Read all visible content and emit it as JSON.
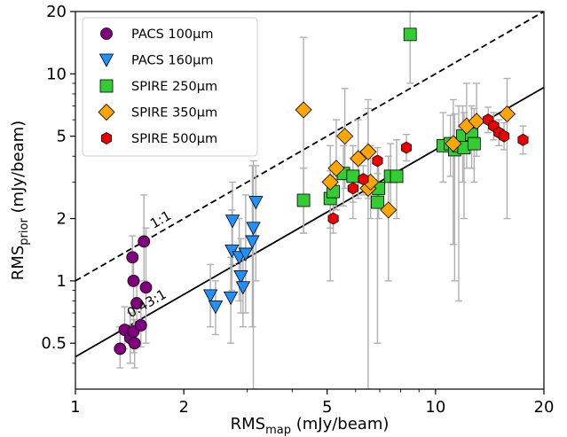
{
  "chart_data": {
    "type": "scatter",
    "xlabel": {
      "base": "RMS",
      "sub": "map",
      "rest": " (mJy/beam)"
    },
    "ylabel": {
      "base": "RMS",
      "sub": "prior",
      "rest": " (mJy/beam)"
    },
    "xscale": "log",
    "yscale": "log",
    "xlim": [
      1,
      20
    ],
    "ylim": [
      0.3,
      20
    ],
    "xticks": [
      1,
      2,
      5,
      10,
      20
    ],
    "xtick_labels": [
      "1",
      "2",
      "5",
      "10",
      "20"
    ],
    "yticks": [
      0.5,
      1,
      2,
      5,
      10,
      20
    ],
    "ytick_labels": [
      "0.5",
      "1",
      "2",
      "5",
      "10",
      "20"
    ],
    "grid": false,
    "legend_position": "top-left",
    "lines": [
      {
        "name": "1:1",
        "label": "1:1",
        "slope": 1.0,
        "style": "dashed",
        "label_x": 1.75
      },
      {
        "name": "0.43:1",
        "label": "0.43:1",
        "slope": 0.43,
        "style": "solid",
        "label_x": 1.6
      }
    ],
    "series": [
      {
        "name": "PACS 100µm",
        "marker": "circle",
        "color": "#800080",
        "points": [
          {
            "x": 1.33,
            "y": 0.47,
            "ylo": 0.38,
            "yhi": 0.6
          },
          {
            "x": 1.37,
            "y": 0.58,
            "ylo": 0.47,
            "yhi": 0.75
          },
          {
            "x": 1.42,
            "y": 0.53,
            "ylo": 0.4,
            "yhi": 0.7
          },
          {
            "x": 1.44,
            "y": 1.3,
            "ylo": 1.0,
            "yhi": 1.65
          },
          {
            "x": 1.45,
            "y": 1.0,
            "ylo": 0.78,
            "yhi": 1.3
          },
          {
            "x": 1.45,
            "y": 0.57,
            "ylo": 0.45,
            "yhi": 0.74
          },
          {
            "x": 1.46,
            "y": 0.5,
            "ylo": 0.38,
            "yhi": 0.65
          },
          {
            "x": 1.48,
            "y": 0.78,
            "ylo": 0.6,
            "yhi": 1.0
          },
          {
            "x": 1.52,
            "y": 0.61,
            "ylo": 0.48,
            "yhi": 0.78
          },
          {
            "x": 1.55,
            "y": 1.55,
            "ylo": 1.0,
            "yhi": 2.6
          },
          {
            "x": 1.57,
            "y": 0.93,
            "ylo": 0.5,
            "yhi": 1.8
          }
        ]
      },
      {
        "name": "PACS 160µm",
        "marker": "triangle-down",
        "color": "#1e90ff",
        "points": [
          {
            "x": 2.37,
            "y": 0.85,
            "ylo": 0.6,
            "yhi": 1.2
          },
          {
            "x": 2.45,
            "y": 0.75,
            "ylo": 0.55,
            "yhi": 1.0
          },
          {
            "x": 2.7,
            "y": 0.83,
            "ylo": 0.5,
            "yhi": 1.3
          },
          {
            "x": 2.72,
            "y": 1.4,
            "ylo": 0.9,
            "yhi": 2.2
          },
          {
            "x": 2.73,
            "y": 1.95,
            "ylo": 1.2,
            "yhi": 3.0
          },
          {
            "x": 2.85,
            "y": 1.3,
            "ylo": 0.8,
            "yhi": 2.0
          },
          {
            "x": 2.88,
            "y": 1.05,
            "ylo": 0.7,
            "yhi": 1.6
          },
          {
            "x": 2.92,
            "y": 0.93,
            "ylo": 0.6,
            "yhi": 1.4
          },
          {
            "x": 2.97,
            "y": 1.35,
            "ylo": 0.7,
            "yhi": 2.6
          },
          {
            "x": 3.1,
            "y": 1.55,
            "ylo": 0.6,
            "yhi": 3.6
          },
          {
            "x": 3.12,
            "y": 1.8,
            "ylo": 0.3,
            "yhi": 3.8
          },
          {
            "x": 3.17,
            "y": 2.4,
            "ylo": 1.0,
            "yhi": 3.6
          }
        ]
      },
      {
        "name": "SPIRE 250µm",
        "marker": "square",
        "color": "#32cd32",
        "points": [
          {
            "x": 4.3,
            "y": 2.45,
            "ylo": 1.7,
            "yhi": 3.5
          },
          {
            "x": 5.1,
            "y": 2.5,
            "ylo": 1.8,
            "yhi": 3.4
          },
          {
            "x": 5.2,
            "y": 2.7,
            "ylo": 2.0,
            "yhi": 3.6
          },
          {
            "x": 5.55,
            "y": 3.3,
            "ylo": 2.3,
            "yhi": 4.5
          },
          {
            "x": 5.9,
            "y": 3.2,
            "ylo": 2.0,
            "yhi": 4.5
          },
          {
            "x": 6.9,
            "y": 2.4,
            "ylo": 0.5,
            "yhi": 4.0
          },
          {
            "x": 6.95,
            "y": 2.8,
            "ylo": 2.0,
            "yhi": 3.8
          },
          {
            "x": 7.5,
            "y": 3.2,
            "ylo": 2.2,
            "yhi": 4.6
          },
          {
            "x": 7.8,
            "y": 3.2,
            "ylo": 2.0,
            "yhi": 4.8
          },
          {
            "x": 8.5,
            "y": 15.5,
            "ylo": 9.0,
            "yhi": 20.0
          },
          {
            "x": 10.5,
            "y": 4.5,
            "ylo": 3.0,
            "yhi": 6.5
          },
          {
            "x": 11.0,
            "y": 4.6,
            "ylo": 3.2,
            "yhi": 6.3
          },
          {
            "x": 11.3,
            "y": 4.3,
            "ylo": 1.0,
            "yhi": 6.4
          },
          {
            "x": 11.6,
            "y": 4.5,
            "ylo": 0.8,
            "yhi": 7.0
          },
          {
            "x": 11.9,
            "y": 5.0,
            "ylo": 3.0,
            "yhi": 7.0
          },
          {
            "x": 12.0,
            "y": 4.4,
            "ylo": 2.0,
            "yhi": 6.5
          },
          {
            "x": 12.6,
            "y": 5.1,
            "ylo": 3.5,
            "yhi": 7.0
          },
          {
            "x": 12.8,
            "y": 4.6,
            "ylo": 3.0,
            "yhi": 6.8
          }
        ]
      },
      {
        "name": "SPIRE 350µm",
        "marker": "diamond",
        "color": "#ffa500",
        "points": [
          {
            "x": 4.3,
            "y": 6.7,
            "ylo": 1.7,
            "yhi": 15.0
          },
          {
            "x": 5.1,
            "y": 3.0,
            "ylo": 1.0,
            "yhi": 4.5
          },
          {
            "x": 5.3,
            "y": 3.5,
            "ylo": 2.2,
            "yhi": 6.0
          },
          {
            "x": 5.6,
            "y": 5.0,
            "ylo": 2.8,
            "yhi": 8.5
          },
          {
            "x": 6.1,
            "y": 3.9,
            "ylo": 2.5,
            "yhi": 6.0
          },
          {
            "x": 6.5,
            "y": 4.2,
            "ylo": 2.5,
            "yhi": 6.8
          },
          {
            "x": 6.5,
            "y": 2.8,
            "ylo": 0.3,
            "yhi": 7.5
          },
          {
            "x": 6.6,
            "y": 3.0,
            "ylo": 2.0,
            "yhi": 4.5
          },
          {
            "x": 7.4,
            "y": 2.2,
            "ylo": 1.0,
            "yhi": 4.0
          },
          {
            "x": 11.2,
            "y": 4.6,
            "ylo": 1.5,
            "yhi": 7.5
          },
          {
            "x": 12.2,
            "y": 5.6,
            "ylo": 3.5,
            "yhi": 9.0
          },
          {
            "x": 13.0,
            "y": 5.9,
            "ylo": 4.0,
            "yhi": 9.0
          },
          {
            "x": 15.8,
            "y": 6.4,
            "ylo": 2.0,
            "yhi": 9.5
          }
        ]
      },
      {
        "name": "SPIRE 500µm",
        "marker": "hexagon",
        "color": "#ee0000",
        "points": [
          {
            "x": 5.2,
            "y": 2.0,
            "ylo": 1.7,
            "yhi": 2.35
          },
          {
            "x": 5.9,
            "y": 2.8,
            "ylo": 2.4,
            "yhi": 3.3
          },
          {
            "x": 6.3,
            "y": 3.1,
            "ylo": 2.6,
            "yhi": 3.6
          },
          {
            "x": 6.9,
            "y": 3.8,
            "ylo": 3.3,
            "yhi": 4.4
          },
          {
            "x": 8.3,
            "y": 4.4,
            "ylo": 3.8,
            "yhi": 5.1
          },
          {
            "x": 14.0,
            "y": 6.0,
            "ylo": 5.2,
            "yhi": 6.9
          },
          {
            "x": 14.5,
            "y": 5.6,
            "ylo": 4.8,
            "yhi": 6.5
          },
          {
            "x": 15.0,
            "y": 5.2,
            "ylo": 4.5,
            "yhi": 6.0
          },
          {
            "x": 15.5,
            "y": 5.0,
            "ylo": 4.3,
            "yhi": 5.8
          },
          {
            "x": 17.5,
            "y": 4.8,
            "ylo": 4.1,
            "yhi": 5.6
          }
        ]
      }
    ]
  }
}
